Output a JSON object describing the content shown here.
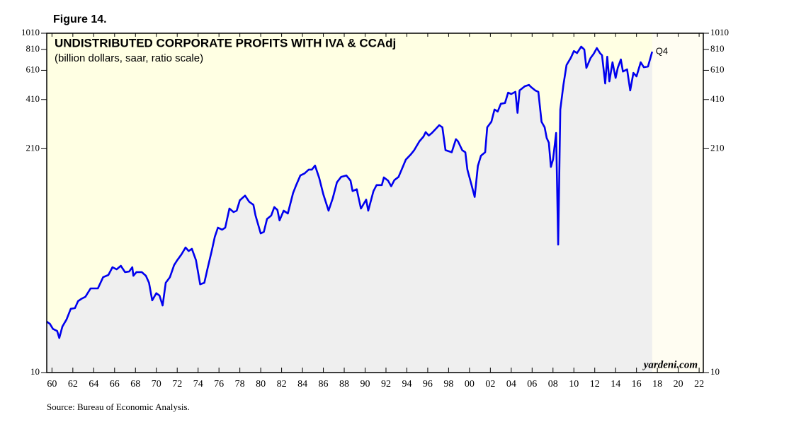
{
  "chart_data": {
    "type": "line",
    "figure_label": "Figure 14.",
    "title": "UNDISTRIBUTED CORPORATE PROFITS WITH IVA & CCAdj",
    "subtitle": "(billion dollars, saar, ratio scale)",
    "end_label": "Q4",
    "watermark": "yardeni.com",
    "source": "Source: Bureau of Economic Analysis.",
    "log_scale": true,
    "grid": false,
    "color": "#0000ee",
    "x": [
      1959.5,
      1959.8,
      1960.1,
      1960.5,
      1960.7,
      1961.0,
      1961.4,
      1961.8,
      1962.2,
      1962.5,
      1962.8,
      1963.2,
      1963.7,
      1964.4,
      1964.9,
      1965.4,
      1965.8,
      1966.2,
      1966.6,
      1967.0,
      1967.4,
      1967.7,
      1967.8,
      1968.1,
      1968.6,
      1969.0,
      1969.3,
      1969.6,
      1970.0,
      1970.3,
      1970.6,
      1970.9,
      1971.3,
      1971.7,
      1972.0,
      1972.4,
      1972.8,
      1973.1,
      1973.4,
      1973.8,
      1974.2,
      1974.6,
      1974.9,
      1975.3,
      1975.6,
      1975.9,
      1976.3,
      1976.6,
      1977.0,
      1977.4,
      1977.7,
      1978.0,
      1978.5,
      1978.9,
      1979.3,
      1979.5,
      1980.0,
      1980.3,
      1980.6,
      1981.0,
      1981.3,
      1981.6,
      1981.8,
      1982.2,
      1982.6,
      1983.1,
      1983.4,
      1983.8,
      1984.2,
      1984.6,
      1984.9,
      1985.2,
      1985.6,
      1986.0,
      1986.5,
      1986.9,
      1987.3,
      1987.7,
      1988.2,
      1988.6,
      1988.8,
      1989.2,
      1989.6,
      1990.1,
      1990.3,
      1990.8,
      1991.1,
      1991.6,
      1991.8,
      1992.2,
      1992.5,
      1992.8,
      1993.2,
      1993.5,
      1993.9,
      1994.4,
      1994.7,
      1995.2,
      1995.6,
      1995.8,
      1996.1,
      1996.4,
      1996.8,
      1997.1,
      1997.4,
      1997.7,
      1998.3,
      1998.7,
      1998.9,
      1999.3,
      1999.6,
      1999.8,
      2000.2,
      2000.5,
      2000.8,
      2001.1,
      2001.5,
      2001.7,
      2002.1,
      2002.4,
      2002.7,
      2003.0,
      2003.4,
      2003.7,
      2004.0,
      2004.4,
      2004.6,
      2004.8,
      2005.3,
      2005.7,
      2005.9,
      2006.3,
      2006.6,
      2006.9,
      2007.2,
      2007.4,
      2007.6,
      2007.8,
      2008.0,
      2008.3,
      2008.5,
      2008.7,
      2009.0,
      2009.3,
      2009.7,
      2010.0,
      2010.3,
      2010.7,
      2011.0,
      2011.2,
      2011.6,
      2011.9,
      2012.2,
      2012.5,
      2012.7,
      2013.0,
      2013.2,
      2013.4,
      2013.7,
      2014.0,
      2014.2,
      2014.5,
      2014.7,
      2015.1,
      2015.4,
      2015.7,
      2016.0,
      2016.4,
      2016.7,
      2017.1,
      2017.5
    ],
    "values": [
      20.0,
      19.4,
      18.1,
      17.6,
      16.0,
      18.7,
      20.6,
      23.8,
      24.0,
      26.4,
      27.2,
      28.0,
      31.4,
      31.4,
      36.6,
      37.7,
      41.9,
      40.7,
      42.7,
      39.2,
      39.5,
      41.9,
      37.3,
      39.2,
      39.2,
      37.3,
      33.9,
      26.7,
      29.4,
      28.5,
      24.9,
      33.9,
      36.6,
      43.1,
      46.1,
      49.8,
      54.8,
      52.2,
      53.8,
      46.1,
      33.2,
      33.9,
      41.1,
      52.2,
      63.4,
      71.8,
      69.8,
      71.8,
      93.1,
      88.7,
      90.4,
      104,
      111,
      102,
      97.9,
      84.6,
      66.4,
      67.7,
      80.7,
      84.6,
      94.9,
      91.3,
      79.2,
      90.4,
      87.0,
      115,
      128,
      146,
      150,
      158,
      158,
      167,
      141,
      113,
      90.4,
      107,
      133,
      143,
      146,
      136,
      118,
      121,
      93.1,
      105,
      90.4,
      118,
      128,
      128,
      142,
      136,
      126,
      137,
      143,
      158,
      181,
      195,
      206,
      232,
      248,
      263,
      251,
      260,
      276,
      289,
      281,
      206,
      200,
      239,
      232,
      206,
      200,
      158,
      128,
      109,
      166,
      191,
      200,
      281,
      303,
      358,
      348,
      387,
      391,
      450,
      442,
      455,
      342,
      464,
      491,
      500,
      486,
      464,
      455,
      303,
      281,
      243,
      228,
      164,
      181,
      260,
      57.0,
      358,
      500,
      655,
      721,
      793,
      771,
      841,
      809,
      630,
      721,
      764,
      825,
      771,
      749,
      510,
      734,
      525,
      680,
      550,
      630,
      707,
      600,
      618,
      464,
      589,
      562,
      680,
      636,
      642,
      786
    ],
    "xlim": [
      1959.5,
      2022.4
    ],
    "xticks": [
      {
        "value": 1960,
        "label": "60"
      },
      {
        "value": 1962,
        "label": "62"
      },
      {
        "value": 1964,
        "label": "64"
      },
      {
        "value": 1966,
        "label": "66"
      },
      {
        "value": 1968,
        "label": "68"
      },
      {
        "value": 1970,
        "label": "70"
      },
      {
        "value": 1972,
        "label": "72"
      },
      {
        "value": 1974,
        "label": "74"
      },
      {
        "value": 1976,
        "label": "76"
      },
      {
        "value": 1978,
        "label": "78"
      },
      {
        "value": 1980,
        "label": "80"
      },
      {
        "value": 1982,
        "label": "82"
      },
      {
        "value": 1984,
        "label": "84"
      },
      {
        "value": 1986,
        "label": "86"
      },
      {
        "value": 1988,
        "label": "88"
      },
      {
        "value": 1990,
        "label": "90"
      },
      {
        "value": 1992,
        "label": "92"
      },
      {
        "value": 1994,
        "label": "94"
      },
      {
        "value": 1996,
        "label": "96"
      },
      {
        "value": 1998,
        "label": "98"
      },
      {
        "value": 2000,
        "label": "00"
      },
      {
        "value": 2002,
        "label": "02"
      },
      {
        "value": 2004,
        "label": "04"
      },
      {
        "value": 2006,
        "label": "06"
      },
      {
        "value": 2008,
        "label": "08"
      },
      {
        "value": 2010,
        "label": "10"
      },
      {
        "value": 2012,
        "label": "12"
      },
      {
        "value": 2014,
        "label": "14"
      },
      {
        "value": 2016,
        "label": "16"
      },
      {
        "value": 2018,
        "label": "18"
      },
      {
        "value": 2020,
        "label": "20"
      },
      {
        "value": 2022,
        "label": "22"
      }
    ],
    "ylim": [
      10,
      1010
    ],
    "yticks": [
      10,
      210,
      410,
      610,
      810,
      1010
    ]
  }
}
